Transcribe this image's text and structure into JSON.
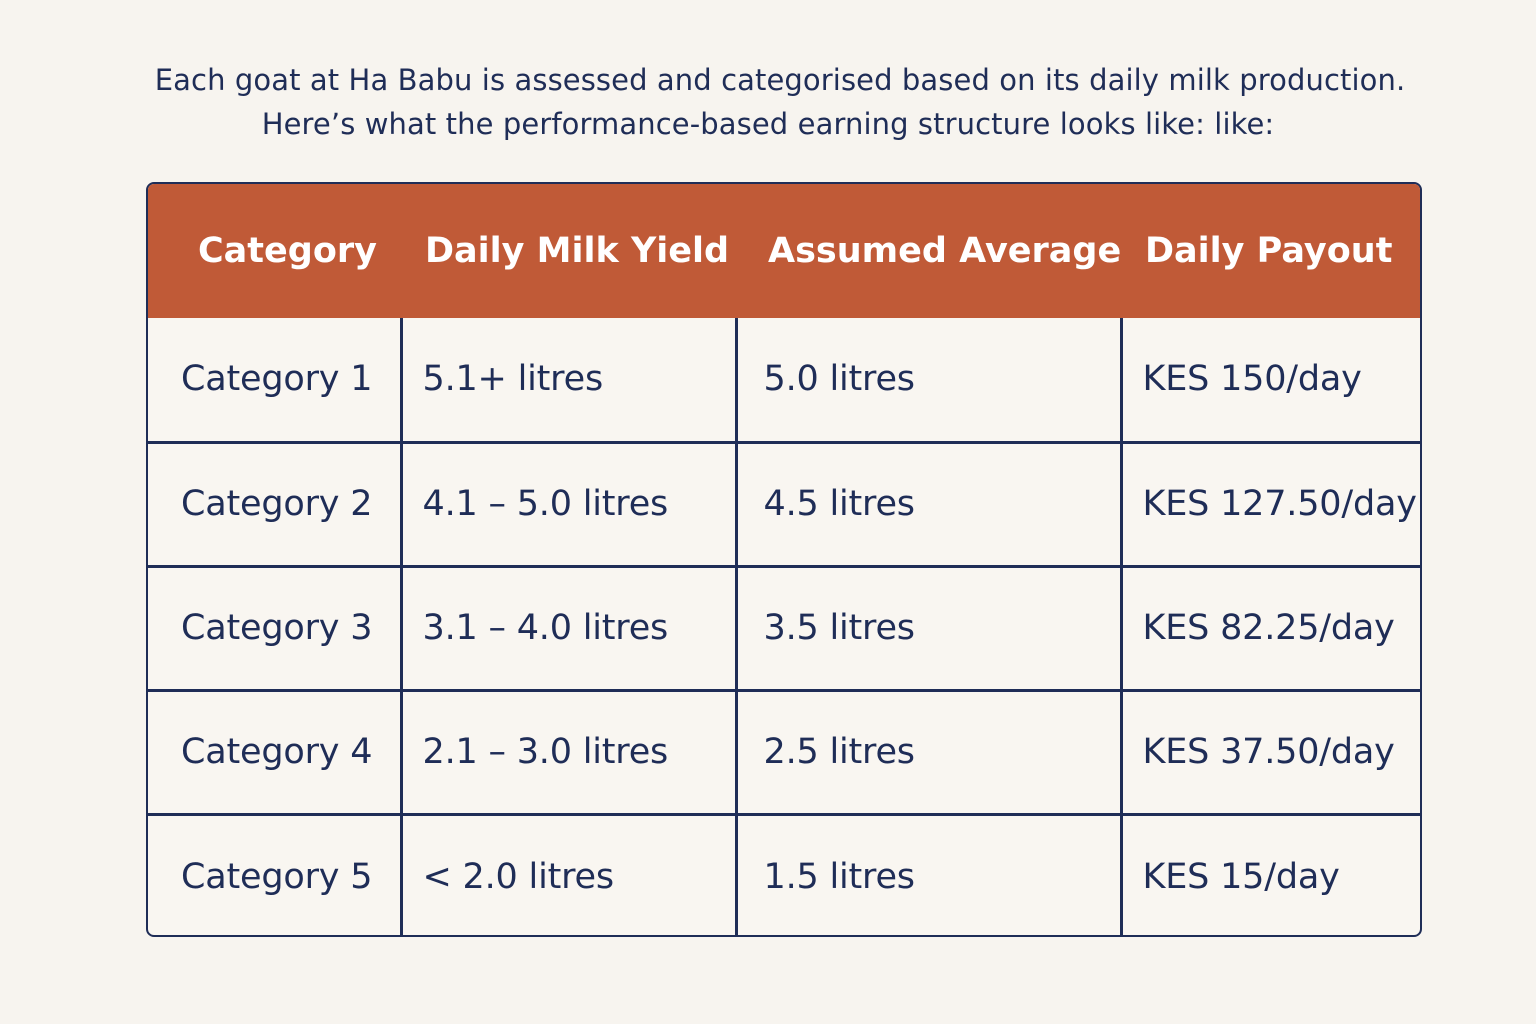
{
  "intro": {
    "line1": "Each goat at Ha Babu is assessed and categorised based on its daily milk production.",
    "line2": "Here’s what the performance-based earning structure looks like: like:"
  },
  "table": {
    "headers": [
      "Category",
      "Daily Milk Yield",
      "Assumed Average",
      "Daily Payout"
    ],
    "rows": [
      [
        "Category 1",
        "5.1+ litres",
        "5.0 litres",
        "KES 150/day"
      ],
      [
        "Category 2",
        "4.1 – 5.0 litres",
        "4.5 litres",
        "KES 127.50/day"
      ],
      [
        "Category 3",
        "3.1 – 4.0 litres",
        "3.5 litres",
        "KES 82.25/day"
      ],
      [
        "Category 4",
        "2.1 – 3.0 litres",
        "2.5 litres",
        "KES 37.50/day"
      ],
      [
        "Category 5",
        "< 2.0 litres",
        "1.5 litres",
        "KES 15/day"
      ]
    ]
  },
  "colors": {
    "background": "#f7f4ef",
    "header_bg": "#c05a37",
    "header_text": "#ffffff",
    "text": "#1f2d57",
    "border": "#1f2d57"
  }
}
